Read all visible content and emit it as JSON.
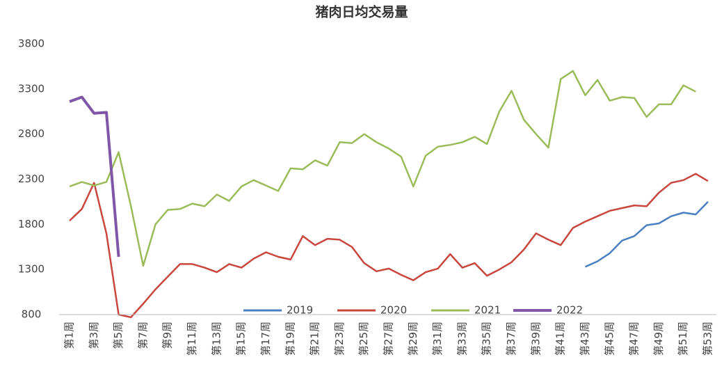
{
  "chart_data": {
    "type": "line",
    "title": "猪肉日均交易量",
    "categories": [
      "第1周",
      null,
      "第3周",
      null,
      "第5周",
      null,
      "第7周",
      null,
      "第9周",
      null,
      "第11周",
      null,
      "第13周",
      null,
      "第15周",
      null,
      "第17周",
      null,
      "第19周",
      null,
      "第21周",
      null,
      "第23周",
      null,
      "第25周",
      null,
      "第27周",
      null,
      "第29周",
      null,
      "第31周",
      null,
      "第33周",
      null,
      "第35周",
      null,
      "第37周",
      null,
      "第39周",
      null,
      "第41周",
      null,
      "第43周",
      null,
      "第45周",
      null,
      "第47周",
      null,
      "第49周",
      null,
      "第51周",
      null,
      "第53周"
    ],
    "series": [
      {
        "name": "2019",
        "color": "#4a7fc1",
        "values": [
          null,
          null,
          null,
          null,
          null,
          null,
          null,
          null,
          null,
          null,
          null,
          null,
          null,
          null,
          null,
          null,
          null,
          null,
          null,
          null,
          null,
          null,
          null,
          null,
          null,
          null,
          null,
          null,
          null,
          null,
          null,
          null,
          null,
          null,
          null,
          null,
          null,
          null,
          null,
          null,
          null,
          null,
          1330,
          1390,
          1480,
          1620,
          1670,
          1790,
          1810,
          1890,
          1930,
          1910,
          2050
        ]
      },
      {
        "name": "2020",
        "color": "#c9463d",
        "values": [
          1840,
          1970,
          2260,
          1700,
          800,
          770,
          920,
          1080,
          1220,
          1360,
          1360,
          1320,
          1270,
          1360,
          1320,
          1420,
          1490,
          1440,
          1410,
          1670,
          1570,
          1640,
          1630,
          1550,
          1370,
          1280,
          1310,
          1240,
          1180,
          1270,
          1310,
          1470,
          1320,
          1370,
          1230,
          1300,
          1380,
          1520,
          1700,
          1630,
          1570,
          1760,
          1830,
          1890,
          1950,
          1980,
          2010,
          2000,
          2150,
          2260,
          2290,
          2360,
          2280
        ]
      },
      {
        "name": "2021",
        "color": "#9bbb59",
        "values": [
          2220,
          2270,
          2230,
          2270,
          2600,
          2000,
          1340,
          1800,
          1960,
          1970,
          2030,
          2000,
          2130,
          2060,
          2220,
          2290,
          2230,
          2170,
          2420,
          2410,
          2510,
          2450,
          2710,
          2700,
          2800,
          2710,
          2640,
          2550,
          2220,
          2560,
          2660,
          2680,
          2710,
          2770,
          2690,
          3050,
          3280,
          2960,
          2800,
          2650,
          3410,
          3500,
          3230,
          3400,
          3170,
          3210,
          3200,
          2990,
          3130,
          3130,
          3340,
          3270,
          null
        ]
      },
      {
        "name": "2022",
        "color": "#7f56a8",
        "values": [
          3160,
          3210,
          3030,
          3040,
          1440,
          null,
          null,
          null,
          null,
          null,
          null,
          null,
          null,
          null,
          null,
          null,
          null,
          null,
          null,
          null,
          null,
          null,
          null,
          null,
          null,
          null,
          null,
          null,
          null,
          null,
          null,
          null,
          null,
          null,
          null,
          null,
          null,
          null,
          null,
          null,
          null,
          null,
          null,
          null,
          null,
          null,
          null,
          null,
          null,
          null,
          null,
          null,
          null
        ]
      }
    ],
    "ylim": [
      800,
      3800
    ],
    "yticks": [
      800,
      1300,
      1800,
      2300,
      2800,
      3300,
      3800
    ],
    "grid": false,
    "legend": "bottom"
  }
}
